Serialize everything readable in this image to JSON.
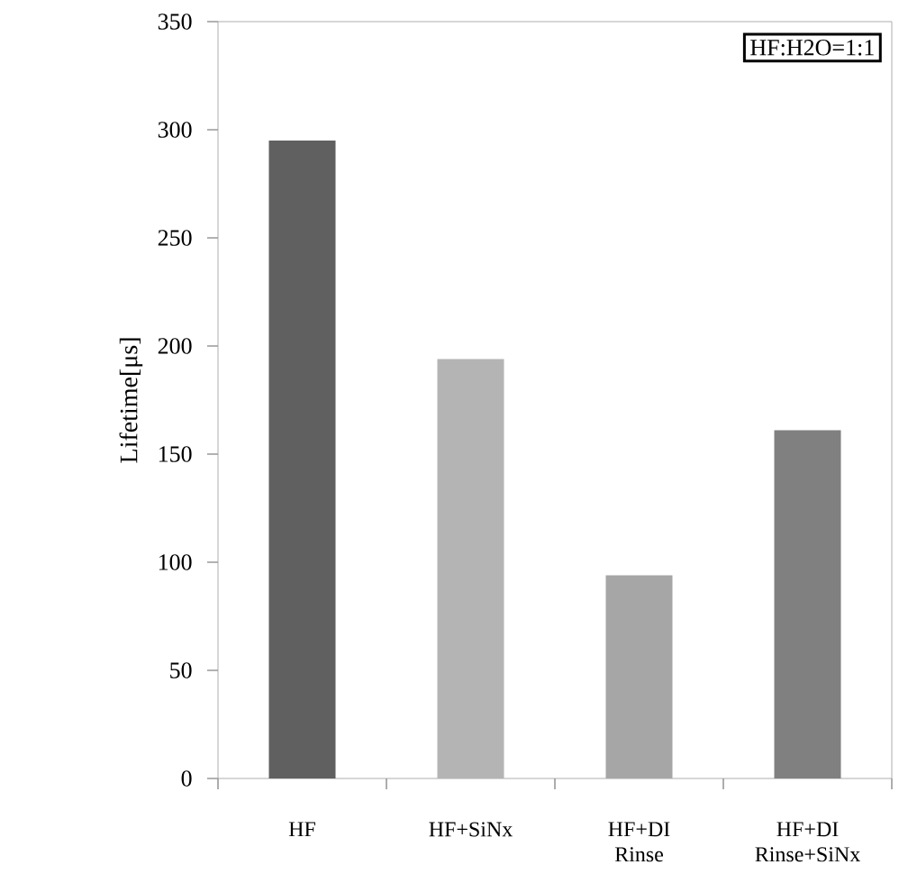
{
  "chart_data": {
    "type": "bar",
    "categories": [
      "HF",
      "HF+SiNx",
      "HF+DI Rinse",
      "HF+DI Rinse+SiNx"
    ],
    "values": [
      295,
      194,
      94,
      161
    ],
    "colors": [
      "#606060",
      "#b4b4b4",
      "#a6a6a6",
      "#808080"
    ],
    "ylabel": "Lifetime[μs]",
    "ylim": [
      0,
      350
    ],
    "yticks": [
      0,
      50,
      100,
      150,
      200,
      250,
      300,
      350
    ],
    "annotations": [
      "HF:H2O=1:1"
    ]
  }
}
